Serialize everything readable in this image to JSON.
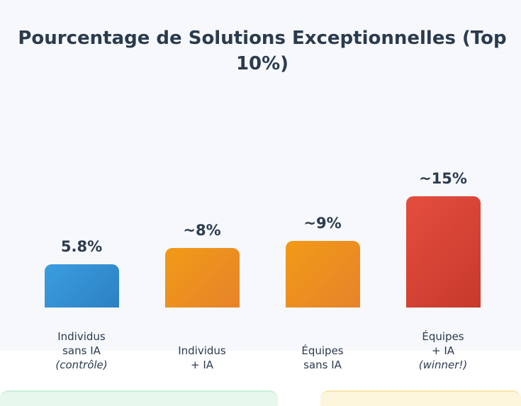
{
  "chart_data": {
    "type": "bar",
    "title": "Pourcentage de Solutions Exceptionnelles (Top 10%)",
    "xlabel": "",
    "ylabel": "",
    "ylim": [
      0,
      16
    ],
    "grid": false,
    "categories": [
      {
        "line1": "Individus",
        "line2": "sans IA",
        "note": "(contrôle)"
      },
      {
        "line1": "Individus",
        "line2": "+ IA",
        "note": ""
      },
      {
        "line1": "Équipes",
        "line2": "sans IA",
        "note": ""
      },
      {
        "line1": "Équipes",
        "line2": "+ IA",
        "note": "(winner!)"
      }
    ],
    "values": [
      5.8,
      8,
      9,
      15
    ],
    "value_labels": [
      "5.8%",
      "~8%",
      "~9%",
      "~15%"
    ],
    "colors": [
      "#3498db",
      "#f39c12",
      "#f39c12",
      "#e74c3c"
    ]
  }
}
